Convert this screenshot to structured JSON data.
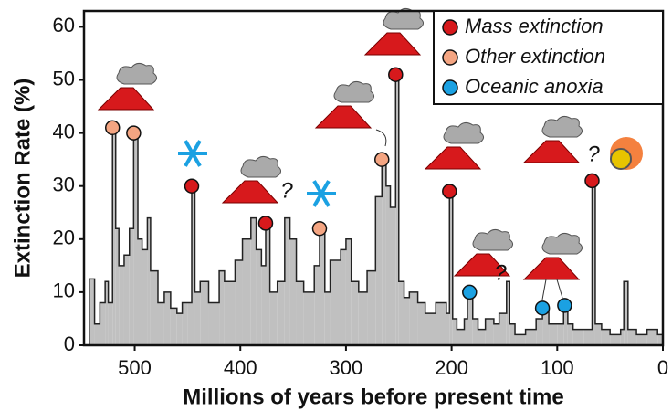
{
  "chart_data": {
    "type": "step-area",
    "xlabel": "Millions of years before present time",
    "ylabel": "Extinction Rate (%)",
    "xlim": [
      548,
      0
    ],
    "xticks": [
      500,
      400,
      300,
      200,
      100,
      0
    ],
    "ylim": [
      0,
      63
    ],
    "yticks": [
      0,
      10,
      20,
      30,
      40,
      50,
      60
    ],
    "color": "#c0c0c0",
    "x": [
      543,
      538,
      533,
      528,
      525,
      521,
      518,
      515,
      510,
      505,
      501,
      497,
      493,
      488,
      485,
      478,
      472,
      466,
      460,
      455,
      450,
      446,
      443,
      438,
      430,
      420,
      415,
      405,
      398,
      390,
      385,
      380,
      376,
      372,
      365,
      358,
      353,
      347,
      340,
      330,
      325,
      320,
      315,
      305,
      300,
      295,
      288,
      280,
      272,
      266,
      262,
      258,
      253,
      250,
      245,
      240,
      232,
      225,
      215,
      205,
      202,
      199,
      195,
      188,
      185,
      180,
      175,
      168,
      160,
      155,
      148,
      145,
      140,
      130,
      120,
      114,
      108,
      100,
      94,
      90,
      85,
      75,
      67,
      64,
      58,
      50,
      40,
      37,
      33,
      25,
      15,
      5
    ],
    "values": [
      12.5,
      4,
      8,
      12,
      8,
      41,
      22,
      15,
      17,
      22,
      40,
      20,
      18,
      24,
      14,
      8,
      10,
      7,
      6,
      8,
      8,
      30,
      10,
      12,
      8,
      14,
      12,
      16,
      20,
      24,
      18,
      15,
      23,
      10,
      12,
      24,
      20,
      12,
      10,
      15,
      22,
      10,
      16,
      18,
      20,
      12,
      10,
      14,
      28,
      35,
      30,
      26,
      51,
      12,
      9,
      10,
      8,
      6,
      8,
      6,
      29,
      5,
      3,
      5,
      9,
      5,
      3,
      5,
      4,
      6,
      12,
      4,
      2,
      3,
      5,
      7,
      4,
      4,
      7,
      4,
      3,
      3,
      31,
      4,
      3,
      2,
      3,
      12,
      3,
      2,
      3,
      2
    ],
    "series": [
      {
        "name": "Mass extinction",
        "color": "#d7191c",
        "x": [
          446,
          376,
          253,
          202,
          67
        ],
        "values": [
          30,
          23,
          51,
          29,
          31
        ]
      },
      {
        "name": "Other extinction",
        "color": "#f4a582",
        "x": [
          521,
          501,
          325,
          266
        ],
        "values": [
          41,
          40,
          22,
          35
        ]
      },
      {
        "name": "Oceanic anoxia",
        "color": "#1ba1e2",
        "x": [
          183,
          114,
          93
        ],
        "values": [
          10,
          7,
          7.5
        ]
      }
    ],
    "annotations": [
      "?",
      "?",
      "?"
    ]
  }
}
